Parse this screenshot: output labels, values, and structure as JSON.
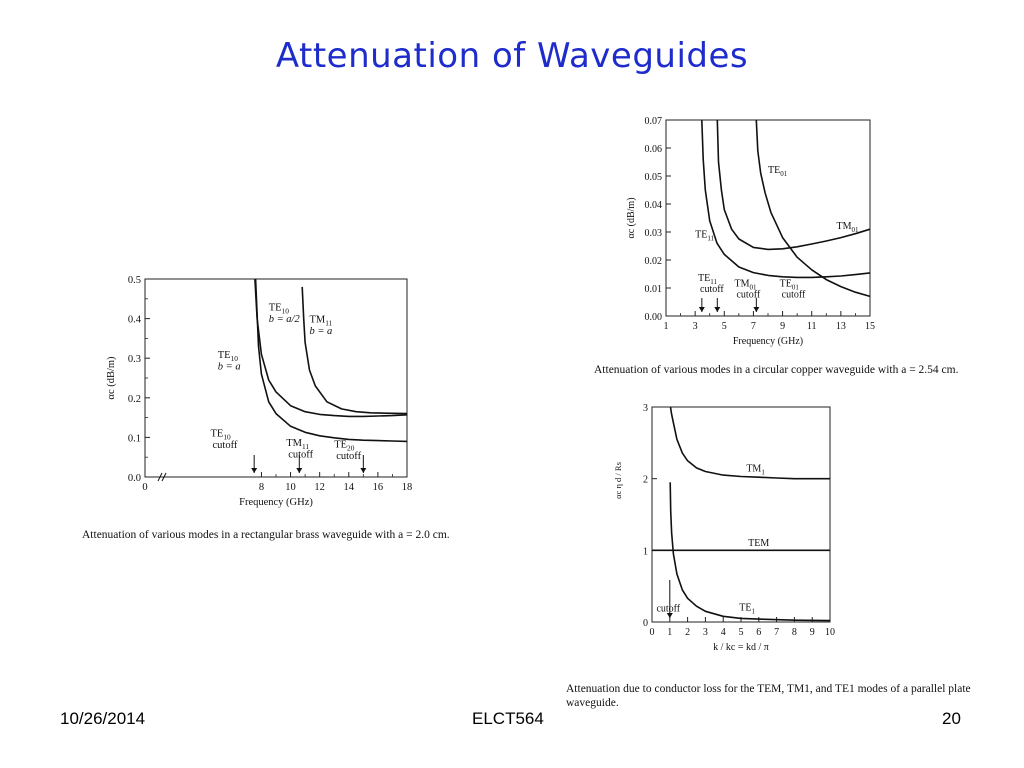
{
  "slide": {
    "title": "Attenuation of Waveguides",
    "footer_date": "10/26/2014",
    "footer_course": "ELCT564",
    "footer_page": "20"
  },
  "chart_data": [
    {
      "id": "rect",
      "type": "line",
      "caption": "Attenuation of various modes in a rectangular brass waveguide with a = 2.0 cm.",
      "xlabel": "Frequency (GHz)",
      "ylabel": "αc (dB/m)",
      "xlim": [
        0,
        18
      ],
      "ylim": [
        0,
        0.5
      ],
      "x_break_after_zero": true,
      "x_ticks": [
        0,
        8,
        10,
        12,
        14,
        16,
        18
      ],
      "y_ticks": [
        0,
        0.1,
        0.2,
        0.3,
        0.4,
        0.5
      ],
      "grid": false,
      "series": [
        {
          "name": "TE10 b = a/2",
          "x": [
            7.55,
            7.7,
            8,
            8.5,
            9,
            10,
            11,
            12,
            13,
            14,
            15,
            16,
            17,
            18
          ],
          "y": [
            0.5,
            0.4,
            0.31,
            0.245,
            0.215,
            0.18,
            0.165,
            0.158,
            0.155,
            0.153,
            0.153,
            0.154,
            0.155,
            0.157
          ]
        },
        {
          "name": "TE10 b = a",
          "x": [
            7.6,
            7.8,
            8,
            8.5,
            9,
            10,
            11,
            12,
            13,
            14,
            15,
            16,
            17,
            18
          ],
          "y": [
            0.5,
            0.33,
            0.26,
            0.19,
            0.16,
            0.128,
            0.113,
            0.104,
            0.099,
            0.095,
            0.093,
            0.092,
            0.091,
            0.09
          ]
        },
        {
          "name": "TM11 b = a",
          "x": [
            10.8,
            10.9,
            11,
            11.3,
            11.7,
            12.5,
            13.5,
            14.5,
            15.5,
            16.5,
            18
          ],
          "y": [
            0.48,
            0.4,
            0.34,
            0.27,
            0.23,
            0.19,
            0.172,
            0.165,
            0.162,
            0.161,
            0.16
          ]
        }
      ],
      "annotations": [
        {
          "label": "TE10",
          "sub": "b = a/2",
          "x": 8.5,
          "y": 0.42
        },
        {
          "label": "TM11",
          "sub": "b = a",
          "x": 11.3,
          "y": 0.39
        },
        {
          "label": "TE10",
          "sub": "b = a",
          "x": 5.0,
          "y": 0.3
        },
        {
          "label": "TE10",
          "sub": "cutoff",
          "x": 4.5,
          "y": 0.102
        },
        {
          "label": "TM11",
          "sub": "cutoff",
          "x": 9.7,
          "y": 0.078
        },
        {
          "label": "TE20",
          "sub": "cutoff",
          "x": 13.0,
          "y": 0.074
        }
      ],
      "cutoffs": [
        7.5,
        10.6,
        15.0
      ]
    },
    {
      "id": "circ",
      "type": "line",
      "caption": "Attenuation of various modes in a circular copper waveguide with a = 2.54 cm.",
      "xlabel": "Frequency (GHz)",
      "ylabel": "αc (dB/m)",
      "xlim": [
        1,
        15
      ],
      "ylim": [
        0,
        0.07
      ],
      "x_ticks": [
        1,
        3,
        5,
        7,
        9,
        11,
        13,
        15
      ],
      "y_ticks": [
        0,
        0.01,
        0.02,
        0.03,
        0.04,
        0.05,
        0.06,
        0.07
      ],
      "grid": false,
      "series": [
        {
          "name": "TE11",
          "x": [
            3.46,
            3.55,
            3.7,
            4,
            4.5,
            5,
            6,
            7,
            8,
            9,
            10,
            11,
            12,
            13,
            14,
            15
          ],
          "y": [
            0.07,
            0.056,
            0.045,
            0.034,
            0.026,
            0.022,
            0.0175,
            0.0155,
            0.0145,
            0.014,
            0.0138,
            0.0138,
            0.014,
            0.0143,
            0.0148,
            0.0154
          ]
        },
        {
          "name": "TM01",
          "x": [
            4.52,
            4.6,
            4.8,
            5,
            5.5,
            6,
            7,
            8,
            9,
            10,
            11,
            12,
            13,
            14,
            15
          ],
          "y": [
            0.07,
            0.055,
            0.045,
            0.038,
            0.031,
            0.0275,
            0.0245,
            0.0238,
            0.024,
            0.0247,
            0.0257,
            0.0268,
            0.028,
            0.0294,
            0.031
          ]
        },
        {
          "name": "TE01",
          "x": [
            7.2,
            7.3,
            7.5,
            7.8,
            8.2,
            9,
            10,
            11,
            12,
            13,
            14,
            15
          ],
          "y": [
            0.07,
            0.059,
            0.051,
            0.044,
            0.037,
            0.028,
            0.021,
            0.0165,
            0.013,
            0.0105,
            0.0085,
            0.007
          ]
        }
      ],
      "annotations": [
        {
          "label": "TE01",
          "x": 8.0,
          "y": 0.051
        },
        {
          "label": "TM01",
          "x": 12.7,
          "y": 0.031
        },
        {
          "label": "TE11",
          "x": 3.0,
          "y": 0.028
        },
        {
          "label": "TE11",
          "sub": "cutoff",
          "x": 3.2,
          "y": 0.0125
        },
        {
          "label": "TM01",
          "sub": "cutoff",
          "x": 5.7,
          "y": 0.0105
        },
        {
          "label": "TE01",
          "sub": "cutoff",
          "x": 8.8,
          "y": 0.0105
        }
      ],
      "cutoffs": [
        3.46,
        4.52,
        7.2
      ]
    },
    {
      "id": "plate",
      "type": "line",
      "caption": "Attenuation due to conductor loss for the TEM, TM1, and TE1 modes of a parallel plate waveguide.",
      "xlabel": "k / kc = kd / π",
      "ylabel": "αc η d / Rs",
      "xlim": [
        0,
        10
      ],
      "ylim": [
        0,
        3
      ],
      "x_ticks": [
        0,
        1,
        2,
        3,
        4,
        5,
        6,
        7,
        8,
        9,
        10
      ],
      "y_ticks": [
        0,
        1,
        2,
        3
      ],
      "grid": false,
      "series": [
        {
          "name": "TM1",
          "x": [
            1.04,
            1.1,
            1.2,
            1.4,
            1.7,
            2,
            2.5,
            3,
            4,
            5,
            6,
            7,
            8,
            9,
            10
          ],
          "y": [
            3.0,
            2.9,
            2.78,
            2.55,
            2.36,
            2.25,
            2.15,
            2.1,
            2.05,
            2.03,
            2.02,
            2.01,
            2.0,
            2.0,
            2.0
          ]
        },
        {
          "name": "TEM",
          "x": [
            0,
            10
          ],
          "y": [
            1.0,
            1.0
          ]
        },
        {
          "name": "TE1",
          "x": [
            1.02,
            1.05,
            1.1,
            1.2,
            1.4,
            1.7,
            2,
            2.5,
            3,
            4,
            5,
            6,
            8,
            10
          ],
          "y": [
            1.95,
            1.55,
            1.25,
            0.95,
            0.67,
            0.45,
            0.33,
            0.22,
            0.15,
            0.08,
            0.05,
            0.04,
            0.025,
            0.02
          ]
        }
      ],
      "annotations": [
        {
          "label": "TM1",
          "x": 5.3,
          "y": 2.1
        },
        {
          "label": "TEM",
          "x": 5.4,
          "y": 1.06
        },
        {
          "label": "TE1",
          "x": 4.9,
          "y": 0.16
        },
        {
          "label": "cutoff",
          "x": 0.25,
          "y": 0.15
        }
      ],
      "cutoffs": [
        1.0
      ]
    }
  ]
}
